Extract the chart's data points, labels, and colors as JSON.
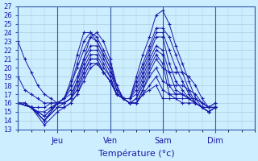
{
  "xlabel": "Température (°c)",
  "xlim": [
    0,
    108
  ],
  "ylim": [
    13,
    27
  ],
  "yticks": [
    13,
    14,
    15,
    16,
    17,
    18,
    19,
    20,
    21,
    22,
    23,
    24,
    25,
    26,
    27
  ],
  "xtick_positions": [
    18,
    42,
    66,
    90
  ],
  "xtick_labels": [
    "Jeu",
    "Ven",
    "Sam",
    "Dim"
  ],
  "bg_color": "#cceeff",
  "grid_color": "#aaccdd",
  "line_color": "#1a1aaa",
  "series": [
    {
      "x": [
        0,
        3,
        6,
        9,
        12,
        15,
        18,
        21,
        24,
        27,
        30,
        33,
        36,
        39,
        42,
        45,
        48,
        51,
        54,
        57,
        60,
        63,
        66,
        69,
        72,
        75,
        78,
        81,
        84,
        87,
        90
      ],
      "y": [
        23.0,
        21.0,
        19.5,
        18.0,
        17.0,
        16.5,
        16.0,
        16.0,
        16.5,
        18.5,
        21.0,
        23.5,
        24.0,
        23.0,
        21.0,
        18.0,
        16.5,
        16.0,
        16.0,
        17.0,
        17.5,
        18.0,
        16.5,
        16.5,
        16.5,
        16.0,
        16.0,
        16.0,
        15.5,
        15.5,
        16.0
      ]
    },
    {
      "x": [
        0,
        3,
        6,
        9,
        12,
        15,
        18,
        21,
        24,
        27,
        30,
        33,
        36,
        39,
        42,
        45,
        48,
        51,
        54,
        57,
        60,
        63,
        66,
        69,
        72,
        75,
        78,
        81,
        84,
        87,
        90
      ],
      "y": [
        19.0,
        17.5,
        17.0,
        16.5,
        16.0,
        16.0,
        16.0,
        16.5,
        18.5,
        21.5,
        24.0,
        24.0,
        23.0,
        21.5,
        20.0,
        17.5,
        16.5,
        16.0,
        16.0,
        17.0,
        18.0,
        19.0,
        17.5,
        17.0,
        17.0,
        17.0,
        16.5,
        16.0,
        15.5,
        15.5,
        16.0
      ]
    },
    {
      "x": [
        0,
        3,
        6,
        9,
        12,
        15,
        18,
        21,
        24,
        27,
        30,
        33,
        36,
        39,
        42,
        45,
        48,
        51,
        54,
        57,
        60,
        63,
        66,
        69,
        72,
        75,
        78,
        81,
        84,
        87,
        90
      ],
      "y": [
        16.0,
        16.0,
        15.5,
        15.5,
        15.5,
        16.0,
        16.0,
        16.5,
        18.0,
        20.5,
        23.0,
        24.0,
        23.5,
        22.0,
        20.5,
        18.0,
        16.5,
        16.0,
        16.0,
        17.5,
        19.0,
        20.0,
        18.5,
        18.0,
        18.0,
        18.0,
        17.5,
        17.0,
        16.0,
        15.5,
        15.5
      ]
    },
    {
      "x": [
        0,
        3,
        6,
        9,
        12,
        15,
        18,
        21,
        24,
        27,
        30,
        33,
        36,
        39,
        42,
        45,
        48,
        51,
        54,
        57,
        60,
        63,
        66,
        69,
        72,
        75,
        78,
        81,
        84,
        87,
        90
      ],
      "y": [
        16.0,
        16.0,
        15.5,
        15.0,
        15.0,
        15.5,
        16.0,
        16.5,
        18.0,
        20.0,
        22.0,
        23.5,
        23.0,
        21.5,
        20.0,
        18.0,
        16.5,
        16.0,
        16.0,
        17.5,
        19.5,
        21.0,
        20.0,
        19.5,
        19.5,
        19.5,
        19.0,
        18.0,
        16.5,
        15.5,
        15.5
      ]
    },
    {
      "x": [
        0,
        6,
        12,
        18,
        21,
        24,
        27,
        30,
        33,
        36,
        39,
        42,
        45,
        48,
        51,
        54,
        57,
        60,
        63,
        66,
        69,
        72,
        75,
        78,
        81,
        84,
        87,
        90
      ],
      "y": [
        16.0,
        15.5,
        14.5,
        16.0,
        16.5,
        17.5,
        19.0,
        21.0,
        22.5,
        22.5,
        21.0,
        19.5,
        17.5,
        16.5,
        16.0,
        16.5,
        18.0,
        20.0,
        21.5,
        20.5,
        17.0,
        16.5,
        16.5,
        16.5,
        16.5,
        16.0,
        15.5,
        15.5
      ]
    },
    {
      "x": [
        0,
        6,
        12,
        18,
        21,
        24,
        27,
        30,
        33,
        36,
        39,
        42,
        45,
        48,
        51,
        54,
        57,
        60,
        63,
        66,
        69,
        72,
        75,
        78,
        81,
        84,
        87,
        90
      ],
      "y": [
        16.0,
        15.5,
        14.5,
        16.0,
        16.5,
        17.0,
        18.5,
        20.5,
        22.0,
        22.0,
        20.5,
        19.0,
        17.0,
        16.5,
        16.0,
        16.5,
        18.5,
        20.5,
        22.0,
        21.5,
        18.0,
        17.0,
        17.0,
        16.5,
        16.5,
        16.0,
        15.5,
        15.5
      ]
    },
    {
      "x": [
        0,
        6,
        12,
        18,
        21,
        24,
        27,
        30,
        33,
        36,
        39,
        42,
        45,
        48,
        51,
        54,
        57,
        60,
        63,
        66,
        69,
        72,
        75,
        78,
        81,
        84,
        87,
        90
      ],
      "y": [
        16.0,
        15.5,
        14.0,
        16.0,
        16.0,
        16.5,
        18.0,
        20.0,
        21.5,
        21.5,
        20.0,
        19.0,
        17.0,
        16.5,
        16.5,
        17.0,
        19.0,
        21.0,
        22.5,
        22.0,
        19.5,
        17.5,
        17.0,
        16.5,
        16.0,
        15.5,
        15.0,
        15.5
      ]
    },
    {
      "x": [
        0,
        6,
        12,
        18,
        21,
        24,
        27,
        30,
        33,
        36,
        39,
        42,
        45,
        48,
        51,
        54,
        57,
        60,
        63,
        66,
        69,
        72,
        75,
        78,
        81,
        84,
        87,
        90
      ],
      "y": [
        16.0,
        15.5,
        14.0,
        16.0,
        16.0,
        16.5,
        17.5,
        19.5,
        21.0,
        21.0,
        19.5,
        18.5,
        17.0,
        16.5,
        16.5,
        17.5,
        19.5,
        21.5,
        23.5,
        23.5,
        20.5,
        18.5,
        17.5,
        16.5,
        16.0,
        15.5,
        15.0,
        15.5
      ]
    },
    {
      "x": [
        0,
        6,
        12,
        18,
        21,
        24,
        27,
        30,
        33,
        36,
        39,
        42,
        45,
        48,
        51,
        54,
        57,
        60,
        63,
        66,
        69,
        72,
        75,
        78,
        81,
        84,
        87,
        90
      ],
      "y": [
        16.0,
        15.5,
        14.0,
        15.5,
        16.0,
        16.5,
        17.5,
        19.5,
        21.0,
        21.0,
        19.5,
        18.5,
        17.0,
        16.5,
        16.5,
        18.0,
        20.0,
        22.0,
        24.0,
        24.0,
        22.0,
        20.0,
        18.5,
        17.0,
        16.0,
        15.5,
        15.0,
        15.5
      ]
    },
    {
      "x": [
        0,
        6,
        12,
        18,
        21,
        24,
        27,
        30,
        33,
        36,
        39,
        42,
        45,
        48,
        51,
        54,
        57,
        60,
        63,
        66,
        69,
        72,
        75,
        78,
        81,
        84,
        87,
        90
      ],
      "y": [
        16.0,
        15.5,
        14.0,
        15.5,
        15.5,
        16.0,
        17.0,
        19.0,
        20.5,
        20.5,
        19.5,
        18.5,
        17.0,
        16.5,
        16.5,
        18.5,
        20.5,
        22.5,
        24.5,
        24.5,
        23.5,
        21.5,
        19.5,
        17.5,
        16.0,
        15.5,
        15.0,
        15.5
      ]
    },
    {
      "x": [
        0,
        6,
        12,
        18,
        21,
        24,
        27,
        30,
        33,
        36,
        39,
        42,
        45,
        48,
        51,
        54,
        57,
        60,
        63,
        66,
        69,
        72,
        75,
        78,
        81,
        84,
        87,
        90
      ],
      "y": [
        16.0,
        15.5,
        13.5,
        15.0,
        15.5,
        16.0,
        17.0,
        18.5,
        20.0,
        20.5,
        19.5,
        18.5,
        17.0,
        16.5,
        16.5,
        19.0,
        21.5,
        23.5,
        26.0,
        26.5,
        25.0,
        22.5,
        20.5,
        18.5,
        16.5,
        15.5,
        15.0,
        15.5
      ]
    }
  ]
}
